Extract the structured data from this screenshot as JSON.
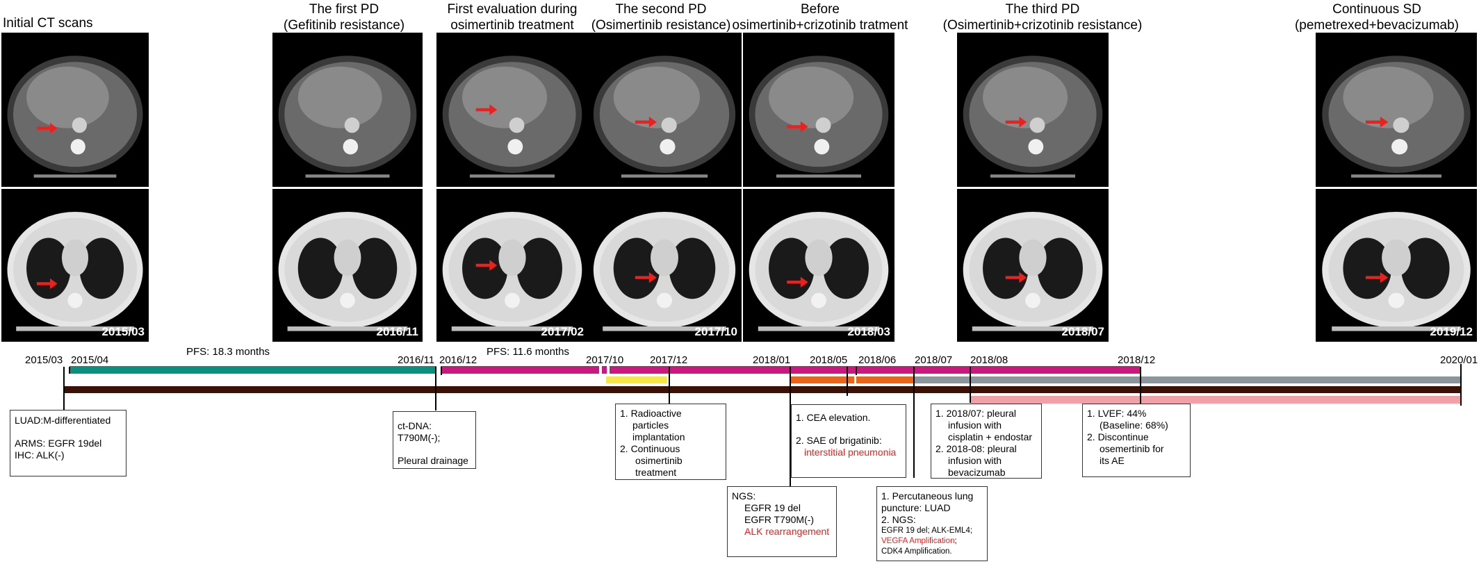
{
  "titles": {
    "initial": "Initial CT scans",
    "first_pd_l1": "The first PD",
    "first_pd_l2": "(Gefitinib resistance)",
    "first_eval_l1": "First evaluation during",
    "first_eval_l2": "osimertinib treatment",
    "second_pd_l1": "The second PD",
    "second_pd_l2": "(Osimertinib resistance)",
    "before_l1": "Before",
    "before_l2": "osimertinib+crizotinib tratment",
    "third_pd_l1": "The third PD",
    "third_pd_l2": "(Osimertinib+crizotinib resistance)",
    "cont_sd_l1": "Continuous SD",
    "cont_sd_l2": "(pemetrexed+bevacizumab)"
  },
  "scan_labels": [
    "2015/03",
    "2016/11",
    "2017/02",
    "2017/10",
    "2018/03",
    "2018/07",
    "2019/12"
  ],
  "timeline": {
    "dates": [
      "2015/03",
      "2015/04",
      "2016/11",
      "2016/12",
      "2017/10",
      "2017/12",
      "2018/01",
      "2018/05",
      "2018/06",
      "2018/07",
      "2018/08",
      "2018/12",
      "2020/01"
    ],
    "pfs1": "PFS: 18.3 months",
    "pfs2": "PFS: 11.6 months"
  },
  "colors": {
    "teal": "#0e8e7e",
    "magenta": "#c8197f",
    "dark_brown": "#3b1005",
    "yellow": "#f7e64a",
    "orange": "#e8651b",
    "gray": "#8c959c",
    "pink": "#f0a1a8",
    "red_arrow": "#e8231f"
  },
  "boxes": {
    "b1": {
      "l1": "LUAD:M-differentiated",
      "l2": "ARMS: EGFR 19del",
      "l3": "IHC: ALK(-)"
    },
    "b2": {
      "l1": "ct-DNA: T790M(-);",
      "l2": "Pleural drainage"
    },
    "b3": {
      "l1": "1. Radioactive",
      "l2": "particles implantation",
      "l3": "2. Continuous",
      "l4": "osimertinib",
      "l5": "treatment"
    },
    "b4": {
      "l1": "NGS:",
      "l2": "EGFR 19 del",
      "l3": "EGFR T790M(-)",
      "l4": "ALK rearrangement"
    },
    "b5": {
      "l1": "1. CEA elevation.",
      "l2": "2. SAE of brigatinib:",
      "l3": "interstitial pneumonia"
    },
    "b6": {
      "l1": "1. Percutaneous lung",
      "l2": "puncture: LUAD",
      "l3": "2. NGS:",
      "l4a": "EGFR 19 del; ALK-EML4;",
      "l4b": "VEGFA Amplification",
      "l4c": ";",
      "l5": "CDK4 Amplification."
    },
    "b7": {
      "l1": "1. 2018/07: pleural",
      "l2": "infusion with",
      "l3": "cisplatin + endostar",
      "l4": "2. 2018-08: pleural",
      "l5": "infusion with",
      "l6": "bevacizumab"
    },
    "b8": {
      "l1": "1. LVEF: 44%",
      "l2": "(Baseline: 68%)",
      "l3": "2. Discontinue",
      "l4": "osemertinib for",
      "l5": "its AE"
    }
  }
}
